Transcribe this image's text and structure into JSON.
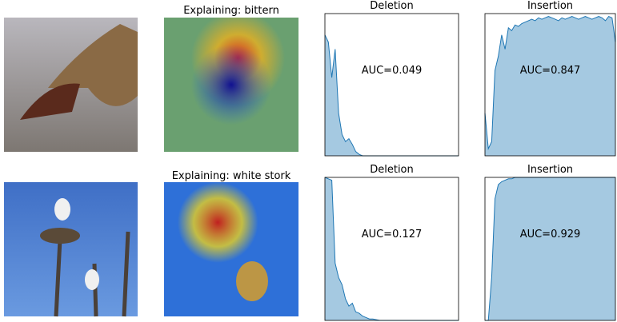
{
  "image_titles": [
    "Explaining: bittern",
    "Explaining: white stork"
  ],
  "chart_data": [
    {
      "type": "area",
      "title": "Deletion",
      "annotation": "AUC=0.049",
      "color": "#1f77b4",
      "x": [
        0,
        1,
        2,
        3,
        4,
        5,
        6,
        7,
        8,
        9,
        10,
        11,
        12,
        13,
        14,
        15,
        16,
        17,
        18,
        19,
        20,
        21,
        22,
        23,
        24,
        25,
        26,
        27,
        28,
        29,
        30,
        31,
        32,
        33,
        34,
        35,
        36,
        37,
        38,
        39
      ],
      "values": [
        0.85,
        0.8,
        0.55,
        0.75,
        0.3,
        0.15,
        0.1,
        0.12,
        0.08,
        0.03,
        0.01,
        0,
        0,
        0,
        0,
        0,
        0,
        0,
        0,
        0,
        0,
        0,
        0,
        0,
        0,
        0,
        0,
        0,
        0,
        0,
        0,
        0,
        0,
        0,
        0,
        0,
        0,
        0,
        0,
        0
      ],
      "xlim": [
        0,
        39
      ],
      "ylim": [
        0,
        1
      ]
    },
    {
      "type": "area",
      "title": "Insertion",
      "annotation": "AUC=0.847",
      "color": "#1f77b4",
      "x": [
        0,
        1,
        2,
        3,
        4,
        5,
        6,
        7,
        8,
        9,
        10,
        11,
        12,
        13,
        14,
        15,
        16,
        17,
        18,
        19,
        20,
        21,
        22,
        23,
        24,
        25,
        26,
        27,
        28,
        29,
        30,
        31,
        32,
        33,
        34,
        35,
        36,
        37,
        38,
        39
      ],
      "values": [
        0.3,
        0.05,
        0.1,
        0.6,
        0.7,
        0.85,
        0.75,
        0.9,
        0.88,
        0.92,
        0.91,
        0.93,
        0.94,
        0.95,
        0.96,
        0.95,
        0.97,
        0.96,
        0.97,
        0.98,
        0.97,
        0.96,
        0.95,
        0.97,
        0.96,
        0.97,
        0.98,
        0.97,
        0.96,
        0.97,
        0.98,
        0.97,
        0.96,
        0.97,
        0.98,
        0.97,
        0.95,
        0.98,
        0.97,
        0.8
      ],
      "xlim": [
        0,
        39
      ],
      "ylim": [
        0,
        1
      ]
    },
    {
      "type": "area",
      "title": "Deletion",
      "annotation": "AUC=0.127",
      "color": "#1f77b4",
      "x": [
        0,
        1,
        2,
        3,
        4,
        5,
        6,
        7,
        8,
        9,
        10,
        11,
        12,
        13,
        14,
        15,
        16,
        17,
        18,
        19,
        20,
        21,
        22,
        23,
        24,
        25,
        26,
        27,
        28,
        29,
        30,
        31,
        32,
        33,
        34,
        35,
        36,
        37,
        38,
        39
      ],
      "values": [
        1,
        0.99,
        0.98,
        0.4,
        0.3,
        0.25,
        0.15,
        0.1,
        0.12,
        0.06,
        0.05,
        0.03,
        0.02,
        0.01,
        0.01,
        0.005,
        0,
        0,
        0,
        0,
        0,
        0,
        0,
        0,
        0,
        0,
        0,
        0,
        0,
        0,
        0,
        0,
        0,
        0,
        0,
        0,
        0,
        0,
        0,
        0
      ],
      "xlim": [
        0,
        39
      ],
      "ylim": [
        0,
        1
      ]
    },
    {
      "type": "area",
      "title": "Insertion",
      "annotation": "AUC=0.929",
      "color": "#1f77b4",
      "x": [
        0,
        1,
        2,
        3,
        4,
        5,
        6,
        7,
        8,
        9,
        10,
        11,
        12,
        13,
        14,
        15,
        16,
        17,
        18,
        19,
        20,
        21,
        22,
        23,
        24,
        25,
        26,
        27,
        28,
        29,
        30,
        31,
        32,
        33,
        34,
        35,
        36,
        37,
        38,
        39
      ],
      "values": [
        0,
        0,
        0.3,
        0.85,
        0.95,
        0.97,
        0.98,
        0.99,
        0.99,
        1,
        1,
        1,
        1,
        1,
        1,
        1,
        1,
        1,
        1,
        1,
        1,
        1,
        1,
        1,
        1,
        1,
        1,
        1,
        1,
        1,
        1,
        1,
        1,
        1,
        1,
        1,
        1,
        1,
        1,
        1
      ],
      "xlim": [
        0,
        39
      ],
      "ylim": [
        0,
        1
      ]
    }
  ]
}
